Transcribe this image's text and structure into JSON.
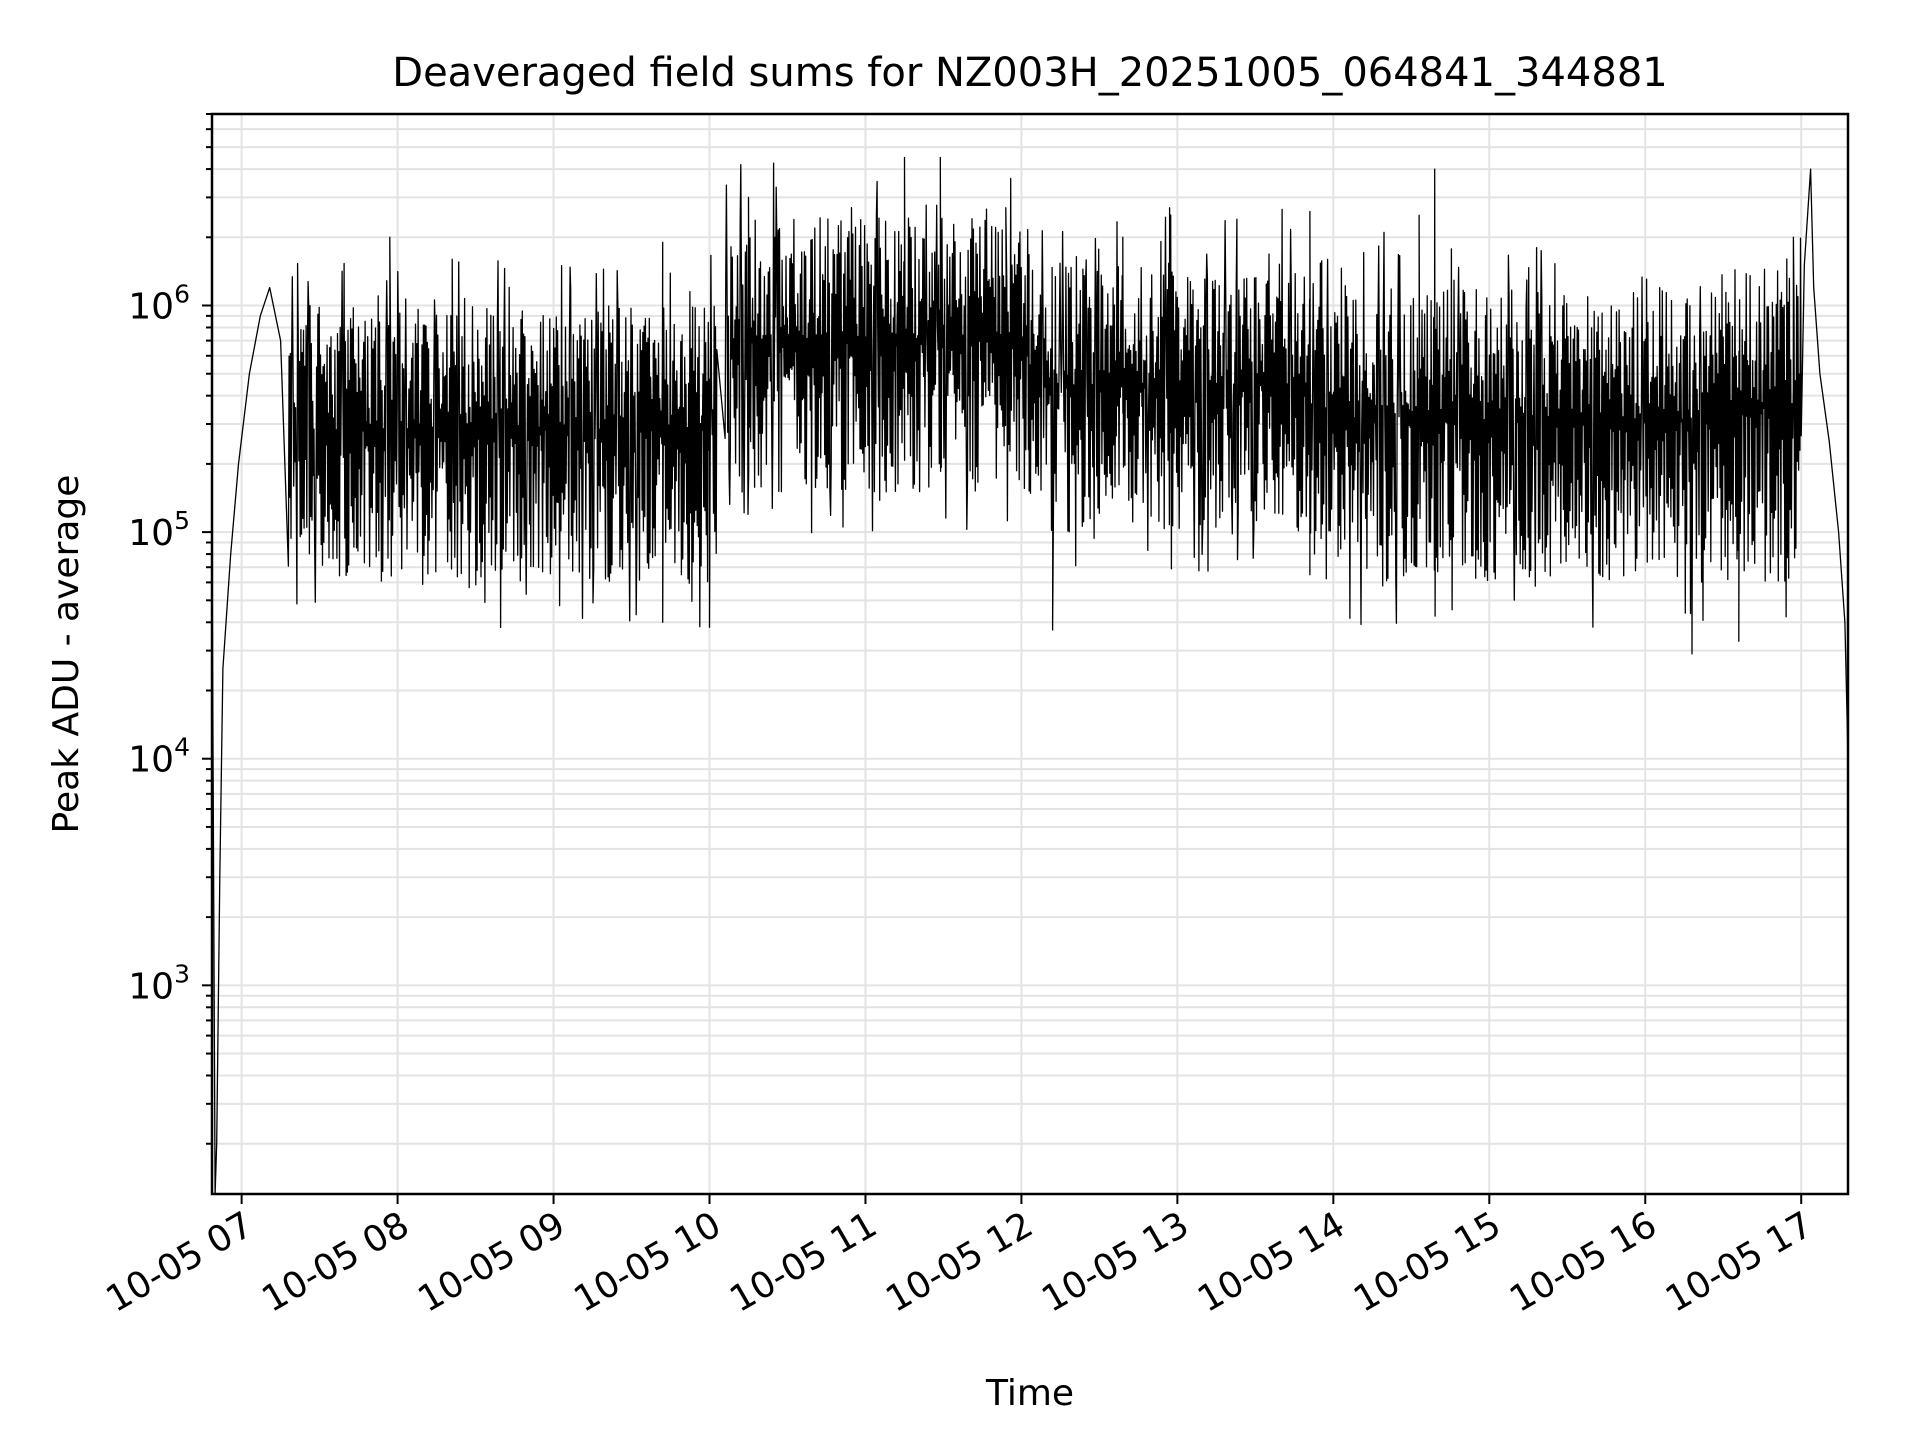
{
  "chart_data": {
    "type": "line",
    "title": "Deaveraged field sums for NZ003H_20251005_064841_344881",
    "xlabel": "Time",
    "ylabel": "Peak ADU - average",
    "yscale": "log",
    "ylim": [
      120,
      7000000
    ],
    "xlim_hours": [
      6.81,
      17.3
    ],
    "grid": true,
    "line_color": "#000000",
    "grid_color": "#e3e3e3",
    "x_ticks": [
      {
        "hour": 7,
        "label": "10-05 07"
      },
      {
        "hour": 8,
        "label": "10-05 08"
      },
      {
        "hour": 9,
        "label": "10-05 09"
      },
      {
        "hour": 10,
        "label": "10-05 10"
      },
      {
        "hour": 11,
        "label": "10-05 11"
      },
      {
        "hour": 12,
        "label": "10-05 12"
      },
      {
        "hour": 13,
        "label": "10-05 13"
      },
      {
        "hour": 14,
        "label": "10-05 14"
      },
      {
        "hour": 15,
        "label": "10-05 15"
      },
      {
        "hour": 16,
        "label": "10-05 16"
      },
      {
        "hour": 17,
        "label": "10-05 17"
      }
    ],
    "y_ticks": [
      {
        "exp": 3,
        "base": "10",
        "sup": "3"
      },
      {
        "exp": 4,
        "base": "10",
        "sup": "4"
      },
      {
        "exp": 5,
        "base": "10",
        "sup": "5"
      },
      {
        "exp": 6,
        "base": "10",
        "sup": "6"
      }
    ],
    "series": [
      {
        "name": "field sums",
        "noise_segments": [
          {
            "from": 7.3,
            "to": 10.05,
            "low": 60000,
            "high": 1000000
          },
          {
            "from": 10.1,
            "to": 12.05,
            "low": 150000,
            "high": 2500000
          },
          {
            "from": 12.05,
            "to": 13.85,
            "low": 100000,
            "high": 1500000
          },
          {
            "from": 13.85,
            "to": 16.5,
            "low": 60000,
            "high": 1200000
          },
          {
            "from": 16.5,
            "to": 17.0,
            "low": 60000,
            "high": 1500000
          }
        ],
        "points": [
          {
            "x": 6.81,
            "y": 100000
          },
          {
            "x": 6.83,
            "y": 120
          },
          {
            "x": 6.84,
            "y": 200
          },
          {
            "x": 6.86,
            "y": 3000
          },
          {
            "x": 6.88,
            "y": 25000
          },
          {
            "x": 6.93,
            "y": 80000
          },
          {
            "x": 6.98,
            "y": 200000
          },
          {
            "x": 7.05,
            "y": 500000
          },
          {
            "x": 7.12,
            "y": 900000
          },
          {
            "x": 7.18,
            "y": 1200000
          },
          {
            "x": 7.25,
            "y": 700000
          },
          {
            "x": 17.02,
            "y": 1500000
          },
          {
            "x": 17.06,
            "y": 4000000
          },
          {
            "x": 17.08,
            "y": 1200000
          },
          {
            "x": 17.12,
            "y": 500000
          },
          {
            "x": 17.18,
            "y": 250000
          },
          {
            "x": 17.24,
            "y": 100000
          },
          {
            "x": 17.28,
            "y": 40000
          },
          {
            "x": 17.3,
            "y": 10000
          }
        ],
        "spikes": [
          {
            "x": 7.95,
            "y": 2000000
          },
          {
            "x": 8.35,
            "y": 1600000
          },
          {
            "x": 9.7,
            "y": 1900000
          },
          {
            "x": 10.25,
            "y": 3000000
          },
          {
            "x": 10.42,
            "y": 2000000
          },
          {
            "x": 11.25,
            "y": 4500000
          },
          {
            "x": 11.48,
            "y": 4500000
          },
          {
            "x": 11.9,
            "y": 2700000
          },
          {
            "x": 12.65,
            "y": 2000000
          },
          {
            "x": 12.95,
            "y": 2700000
          },
          {
            "x": 13.85,
            "y": 2600000
          },
          {
            "x": 14.55,
            "y": 2500000
          },
          {
            "x": 14.65,
            "y": 4000000
          },
          {
            "x": 16.95,
            "y": 2000000
          }
        ],
        "dips": [
          {
            "x": 9.7,
            "y": 40000
          },
          {
            "x": 10.0,
            "y": 38000
          },
          {
            "x": 12.2,
            "y": 37000
          },
          {
            "x": 16.3,
            "y": 29000
          },
          {
            "x": 16.6,
            "y": 33000
          }
        ]
      }
    ]
  }
}
